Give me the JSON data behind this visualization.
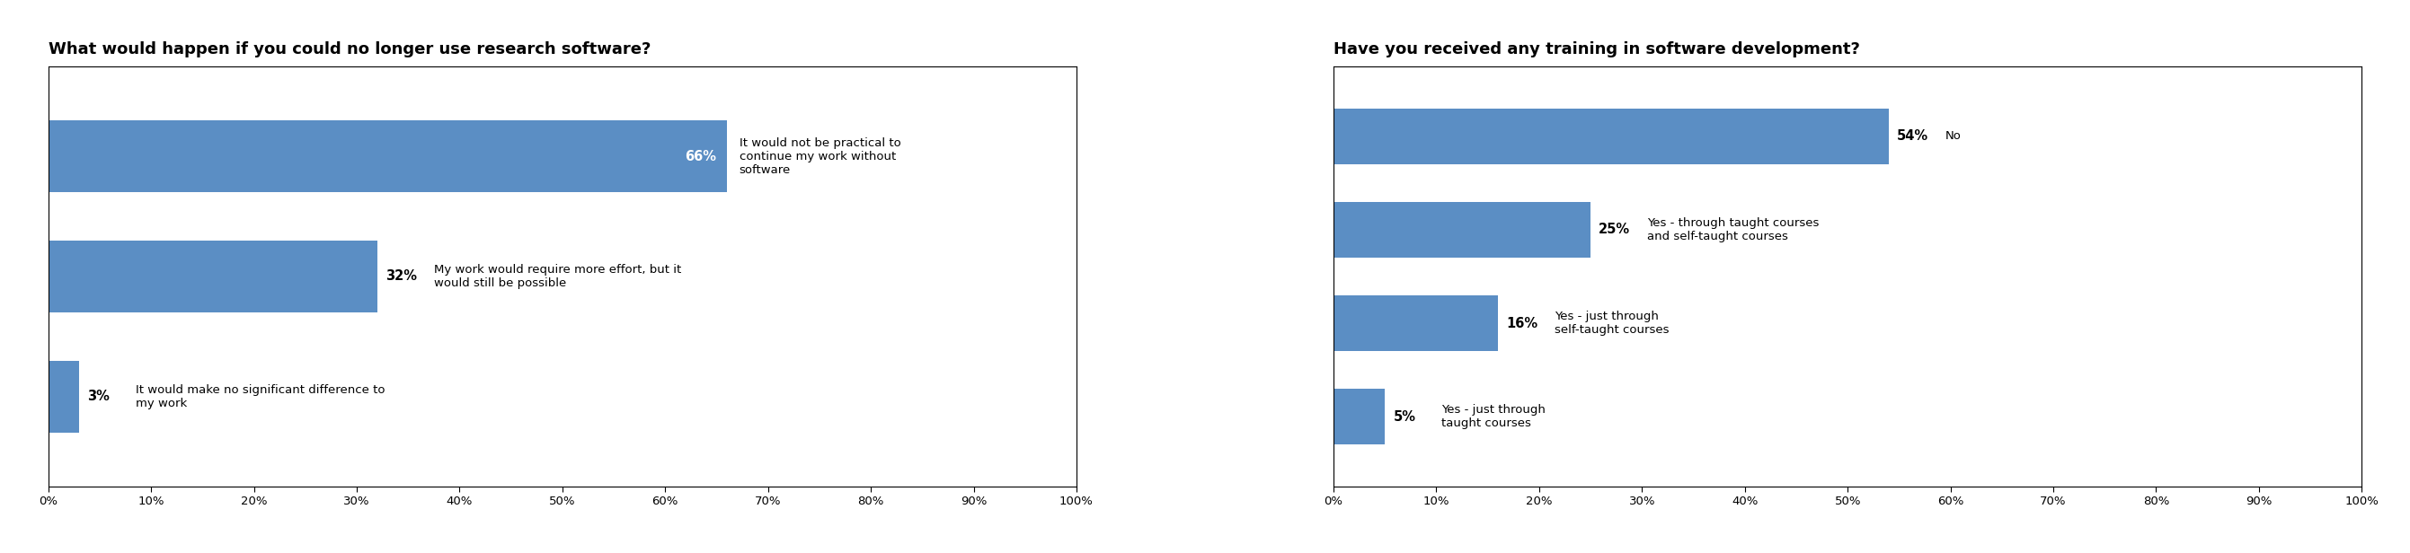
{
  "chart1": {
    "title": "What would happen if you could no longer use research software?",
    "values": [
      66,
      32,
      3
    ],
    "labels": [
      "It would not be practical to\ncontinue my work without\nsoftware",
      "My work would require more effort, but it\nwould still be possible",
      "It would make no significant difference to\nmy work"
    ],
    "pct_labels": [
      "66%",
      "32%",
      "3%"
    ],
    "bar_color": "#5b8ec4",
    "pct_inside": [
      true,
      false,
      false
    ],
    "pct_inside_color": [
      "white",
      "black",
      "black"
    ]
  },
  "chart2": {
    "title": "Have you received any training in software development?",
    "values": [
      54,
      25,
      16,
      5
    ],
    "labels": [
      "No",
      "Yes - through taught courses\nand self-taught courses",
      "Yes - just through\nself-taught courses",
      "Yes - just through\ntaught courses"
    ],
    "pct_labels": [
      "54%",
      "25%",
      "16%",
      "5%"
    ],
    "bar_color": "#5b8ec4",
    "pct_inside": [
      false,
      false,
      false,
      false
    ],
    "pct_inside_color": [
      "black",
      "black",
      "black",
      "black"
    ]
  },
  "xticks": [
    0,
    10,
    20,
    30,
    40,
    50,
    60,
    70,
    80,
    90,
    100
  ],
  "xtick_labels": [
    "0%",
    "10%",
    "20%",
    "30%",
    "40%",
    "50%",
    "60%",
    "70%",
    "80%",
    "90%",
    "100%"
  ],
  "background_color": "#ffffff",
  "bar_height": 0.6,
  "title_fontsize": 13,
  "tick_fontsize": 9.5,
  "label_fontsize": 9.5,
  "pct_fontsize": 10.5
}
